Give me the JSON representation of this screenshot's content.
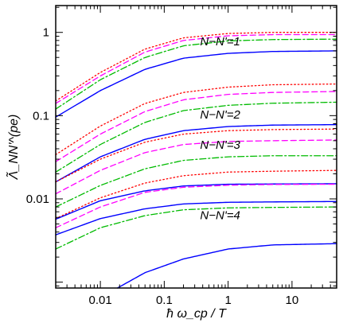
{
  "chart_data": {
    "type": "line",
    "xlabel": "ħ ω_cp / T",
    "ylabel": "Λ̃_NN'^(pe)",
    "x_scale": "log",
    "y_scale": "log",
    "xlim": [
      0.002,
      50
    ],
    "ylim": [
      0.00085,
      2.1
    ],
    "grid": false,
    "x_ticks": [
      {
        "v": 0.01,
        "label": "0.01"
      },
      {
        "v": 0.1,
        "label": "0.1"
      },
      {
        "v": 1,
        "label": "1"
      },
      {
        "v": 10,
        "label": "10"
      }
    ],
    "y_ticks": [
      {
        "v": 0.01,
        "label": "0.01"
      },
      {
        "v": 0.1,
        "label": "0.1"
      },
      {
        "v": 1,
        "label": "1"
      }
    ],
    "line_styles": [
      {
        "color": "#ff0000",
        "dash": "dotted"
      },
      {
        "color": "#ff00ff",
        "dash": "dashed"
      },
      {
        "color": "#00bb00",
        "dash": "dashdot"
      },
      {
        "color": "#0000ff",
        "dash": "solid"
      }
    ],
    "groups": [
      {
        "label": "N−N'=1",
        "label_x": 0.75,
        "label_y": 0.7,
        "curves": [
          {
            "style": 0,
            "x": [
              0.002,
              0.01,
              0.05,
              0.2,
              1,
              5,
              50
            ],
            "y": [
              0.15,
              0.33,
              0.63,
              0.86,
              0.97,
              1.0,
              1.0
            ]
          },
          {
            "style": 1,
            "x": [
              0.002,
              0.01,
              0.05,
              0.2,
              1,
              5,
              50
            ],
            "y": [
              0.14,
              0.3,
              0.58,
              0.8,
              0.91,
              0.94,
              0.94
            ]
          },
          {
            "style": 2,
            "x": [
              0.002,
              0.01,
              0.05,
              0.2,
              1,
              5,
              50
            ],
            "y": [
              0.12,
              0.27,
              0.5,
              0.69,
              0.79,
              0.82,
              0.83
            ]
          },
          {
            "style": 3,
            "x": [
              0.002,
              0.01,
              0.05,
              0.2,
              1,
              5,
              50
            ],
            "y": [
              0.096,
              0.2,
              0.36,
              0.49,
              0.56,
              0.59,
              0.6
            ]
          }
        ]
      },
      {
        "label": "N−N'=2",
        "label_x": 0.75,
        "label_y": 0.092,
        "curves": [
          {
            "style": 0,
            "x": [
              0.002,
              0.01,
              0.05,
              0.2,
              1,
              5,
              50
            ],
            "y": [
              0.034,
              0.075,
              0.14,
              0.19,
              0.22,
              0.235,
              0.24
            ]
          },
          {
            "style": 1,
            "x": [
              0.002,
              0.01,
              0.05,
              0.2,
              1,
              5,
              50
            ],
            "y": [
              0.028,
              0.06,
              0.112,
              0.155,
              0.18,
              0.19,
              0.195
            ]
          },
          {
            "style": 2,
            "x": [
              0.002,
              0.01,
              0.05,
              0.2,
              1,
              5,
              50
            ],
            "y": [
              0.021,
              0.045,
              0.083,
              0.115,
              0.133,
              0.141,
              0.145
            ]
          },
          {
            "style": 3,
            "x": [
              0.002,
              0.01,
              0.05,
              0.2,
              1,
              5,
              50
            ],
            "y": [
              0.016,
              0.032,
              0.052,
              0.066,
              0.074,
              0.077,
              0.078
            ]
          }
        ]
      },
      {
        "label": "N−N'=3",
        "label_x": 0.75,
        "label_y": 0.04,
        "curves": [
          {
            "style": 0,
            "x": [
              0.002,
              0.01,
              0.05,
              0.2,
              1,
              5,
              50
            ],
            "y": [
              0.016,
              0.03,
              0.048,
              0.06,
              0.066,
              0.068,
              0.069
            ]
          },
          {
            "style": 1,
            "x": [
              0.002,
              0.01,
              0.05,
              0.2,
              1,
              5,
              50
            ],
            "y": [
              0.0115,
              0.022,
              0.036,
              0.045,
              0.049,
              0.05,
              0.051
            ]
          },
          {
            "style": 2,
            "x": [
              0.002,
              0.01,
              0.05,
              0.2,
              1,
              5,
              50
            ],
            "y": [
              0.008,
              0.0145,
              0.023,
              0.029,
              0.032,
              0.033,
              0.033
            ]
          }
        ]
      },
      {
        "label": "N−N'=4",
        "label_x": 0.75,
        "label_y": 0.0057,
        "curves": [
          {
            "style": 0,
            "x": [
              0.002,
              0.01,
              0.05,
              0.2,
              1,
              5,
              50
            ],
            "y": [
              0.0058,
              0.0103,
              0.0155,
              0.019,
              0.021,
              0.0215,
              0.022
            ]
          },
          {
            "style": 3,
            "x": [
              0.002,
              0.01,
              0.05,
              0.2,
              1,
              5,
              50
            ],
            "y": [
              0.0057,
              0.0095,
              0.0125,
              0.0143,
              0.015,
              0.0151,
              0.0152
            ]
          },
          {
            "style": 1,
            "x": [
              0.002,
              0.01,
              0.05,
              0.2,
              1,
              5,
              50
            ],
            "y": [
              0.0045,
              0.008,
              0.012,
              0.0138,
              0.0146,
              0.0149,
              0.015
            ]
          },
          {
            "style": 3,
            "x": [
              0.002,
              0.01,
              0.05,
              0.2,
              1,
              5,
              50
            ],
            "y": [
              0.0037,
              0.0058,
              0.0076,
              0.0087,
              0.0091,
              0.0092,
              0.0093
            ]
          },
          {
            "style": 2,
            "x": [
              0.002,
              0.01,
              0.05,
              0.2,
              1,
              5,
              50
            ],
            "y": [
              0.0025,
              0.0045,
              0.0063,
              0.0074,
              0.0078,
              0.0079,
              0.008
            ]
          },
          {
            "style": 3,
            "x": [
              0.0185,
              0.05,
              0.2,
              1,
              5,
              50
            ],
            "y": [
              0.00085,
              0.0013,
              0.0019,
              0.0025,
              0.0028,
              0.0029
            ]
          }
        ]
      }
    ]
  }
}
